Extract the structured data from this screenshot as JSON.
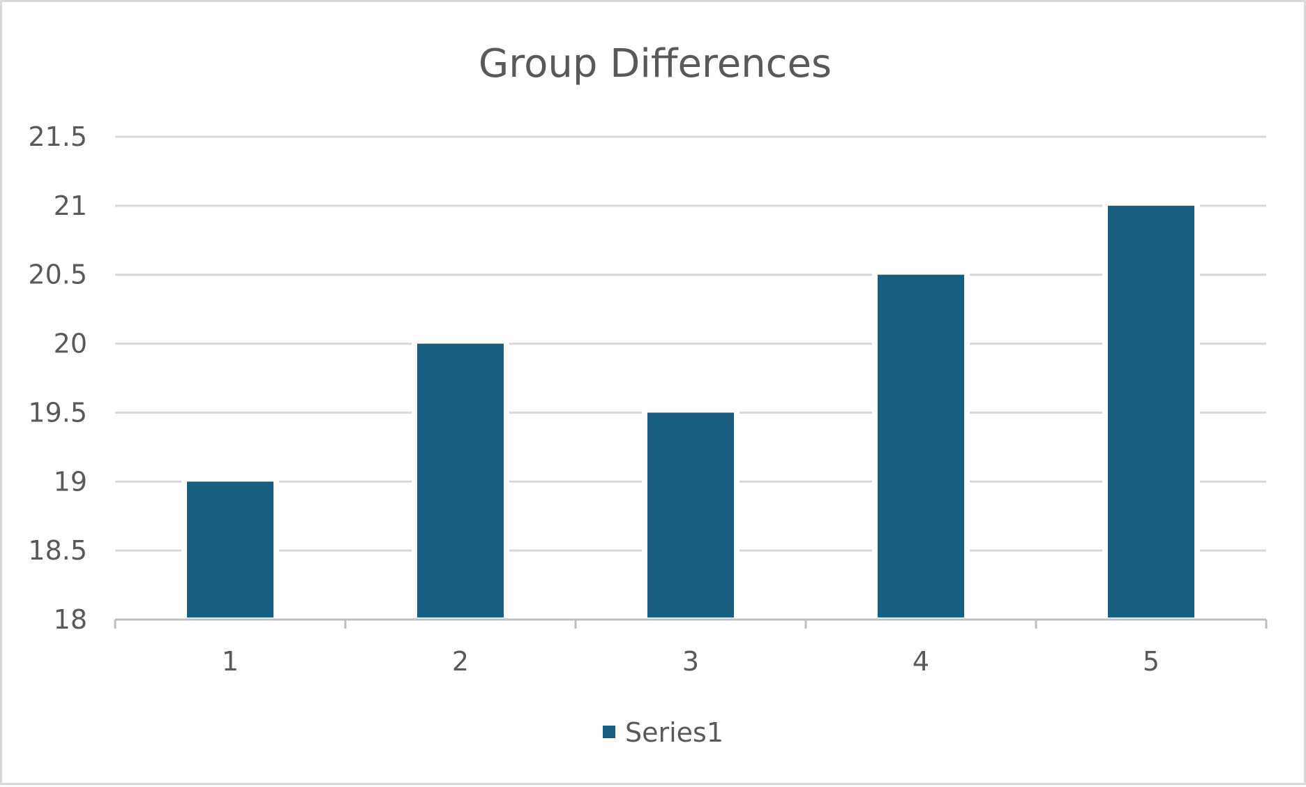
{
  "chart_data": {
    "type": "bar",
    "title": "Group Differences",
    "categories": [
      "1",
      "2",
      "3",
      "4",
      "5"
    ],
    "series": [
      {
        "name": "Series1",
        "values": [
          19,
          20,
          19.5,
          20.5,
          21
        ],
        "color": "#175e80"
      }
    ],
    "ylim": [
      18,
      21.5
    ],
    "yticks": [
      "18",
      "18.5",
      "19",
      "19.5",
      "20",
      "20.5",
      "21",
      "21.5"
    ],
    "grid": true,
    "legend_position": "bottom"
  }
}
